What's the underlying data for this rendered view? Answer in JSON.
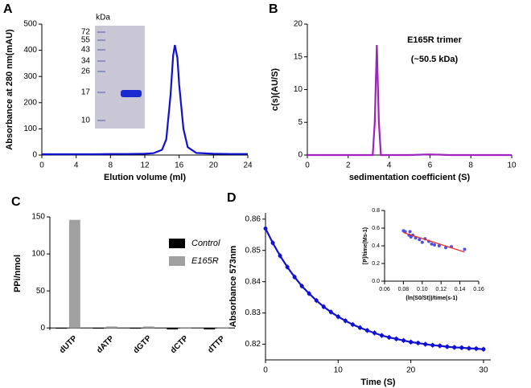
{
  "chart_data": [
    {
      "type": "line",
      "panel_label": "A",
      "xlabel": "Elution volume (ml)",
      "ylabel": "Absorbance at 280 nm(mAU)",
      "x": [
        0,
        2,
        4,
        6,
        8,
        10,
        12,
        13,
        14,
        14.5,
        15,
        15.3,
        15.5,
        15.8,
        16,
        16.5,
        17,
        18,
        20,
        22,
        24
      ],
      "series": [
        {
          "color": "#1010d0",
          "values": [
            3,
            3,
            3,
            3,
            4,
            4,
            5,
            7,
            20,
            60,
            230,
            380,
            420,
            370,
            270,
            100,
            30,
            8,
            5,
            4,
            4
          ]
        }
      ],
      "xlim": [
        0,
        24
      ],
      "xticks": [
        0,
        4,
        8,
        12,
        16,
        20,
        24
      ],
      "ylim": [
        0,
        500
      ],
      "yticks": [
        0,
        100,
        200,
        300,
        400,
        500
      ],
      "gel": {
        "unit": "kDa",
        "markers": [
          72,
          55,
          43,
          34,
          26,
          17,
          10
        ]
      }
    },
    {
      "type": "line",
      "panel_label": "B",
      "xlabel": "sedimentation coefficient (S)",
      "ylabel": "c(s)(AU/S)",
      "annotations": [
        "E165R trimer",
        "(~50.5 kDa)"
      ],
      "x": [
        0,
        1,
        2,
        3,
        3.2,
        3.3,
        3.4,
        3.5,
        3.6,
        4,
        5,
        6,
        7,
        8,
        9,
        10
      ],
      "series": [
        {
          "color": "#a020c0",
          "values": [
            0,
            0,
            0,
            0,
            0,
            5,
            16.8,
            5,
            0,
            0,
            0,
            0.1,
            0,
            0,
            0,
            0
          ]
        }
      ],
      "xlim": [
        0,
        10
      ],
      "xticks": [
        0,
        2,
        4,
        6,
        8,
        10
      ],
      "ylim": [
        0,
        20
      ],
      "yticks": [
        0,
        5,
        10,
        15,
        20
      ]
    },
    {
      "type": "bar",
      "panel_label": "C",
      "ylabel": "PPi/nmol",
      "categories": [
        "dUTP",
        "dATP",
        "dGTP",
        "dCTP",
        "dTTP"
      ],
      "series": [
        {
          "name": "Control",
          "color": "#000000",
          "values": [
            -1,
            -1,
            -1,
            -2,
            -2
          ]
        },
        {
          "name": "E165R",
          "color": "#a0a0a0",
          "values": [
            146,
            2,
            2,
            -1,
            -1
          ]
        }
      ],
      "ylim": [
        -3,
        150
      ],
      "yticks": [
        0,
        50,
        100,
        150
      ]
    },
    {
      "type": "line",
      "panel_label": "D",
      "xlabel": "Time (S)",
      "ylabel": "Absorbance  573nm",
      "x": [
        0,
        1,
        2,
        3,
        4,
        5,
        6,
        7,
        8,
        9,
        10,
        11,
        12,
        13,
        14,
        15,
        16,
        17,
        18,
        19,
        20,
        21,
        22,
        23,
        24,
        25,
        26,
        27,
        28,
        29,
        30
      ],
      "series": [
        {
          "color": "#1010d0",
          "values": [
            0.857,
            0.8524,
            0.8483,
            0.8447,
            0.8415,
            0.8386,
            0.8362,
            0.834,
            0.832,
            0.8303,
            0.8288,
            0.8275,
            0.8263,
            0.8253,
            0.8244,
            0.8236,
            0.8228,
            0.8222,
            0.8217,
            0.8212,
            0.8207,
            0.8204,
            0.82,
            0.8197,
            0.8195,
            0.8192,
            0.819,
            0.8189,
            0.8187,
            0.8186,
            0.8184
          ],
          "errors": [
            0.0008,
            0.0008,
            0.0008,
            0.0008,
            0.0008,
            0.0008,
            0.0008,
            0.0008,
            0.0008,
            0.0008,
            0.0008,
            0.0008,
            0.0008,
            0.0008,
            0.0008,
            0.0008,
            0.0008,
            0.0008,
            0.0008,
            0.0008,
            0.0008,
            0.0008,
            0.0008,
            0.0008,
            0.0008,
            0.0008,
            0.0008,
            0.0008,
            0.0008,
            0.0008,
            0.0008
          ]
        }
      ],
      "xlim": [
        0,
        31
      ],
      "xticks": [
        0,
        10,
        20,
        30
      ],
      "ylim": [
        0.815,
        0.862
      ],
      "yticks": [
        0.82,
        0.83,
        0.84,
        0.85,
        0.86
      ]
    },
    {
      "type": "scatter",
      "xlabel": "(ln(S0/St))/time(s-1)",
      "ylabel": "[P]/time(Ms-1)",
      "x": [
        0.08,
        0.082,
        0.086,
        0.087,
        0.088,
        0.09,
        0.093,
        0.097,
        0.1,
        0.103,
        0.107,
        0.11,
        0.113,
        0.118,
        0.125,
        0.131,
        0.145
      ],
      "values": [
        0.57,
        0.56,
        0.52,
        0.56,
        0.5,
        0.52,
        0.49,
        0.47,
        0.44,
        0.48,
        0.45,
        0.42,
        0.41,
        0.4,
        0.38,
        0.39,
        0.36
      ],
      "color": "#5050e0",
      "fit": {
        "color": "#e03030",
        "x": [
          0.08,
          0.145
        ],
        "values": [
          0.55,
          0.33
        ]
      },
      "xlim": [
        0.06,
        0.16
      ],
      "xticks": [
        0.06,
        0.08,
        {
          "value": 0.1,
          "label": "0.10"
        },
        0.12,
        0.14,
        0.16
      ],
      "ylim": [
        0,
        0.8
      ],
      "yticks": [
        {
          "value": 0,
          "label": "0.0"
        },
        0.2,
        0.4,
        0.6,
        0.8
      ]
    }
  ]
}
